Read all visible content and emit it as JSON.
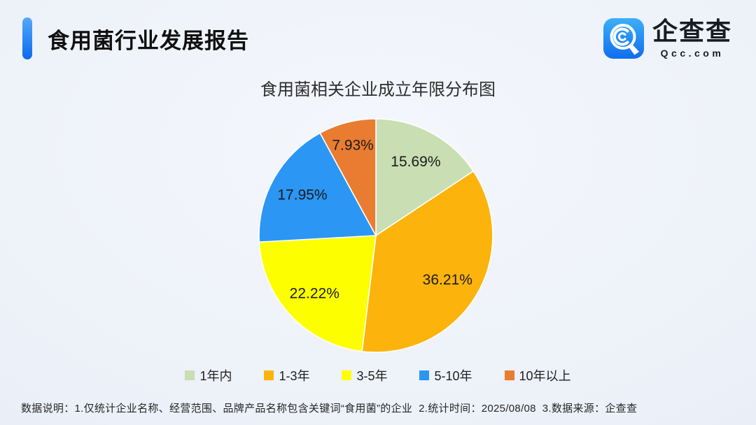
{
  "header": {
    "title": "食用菌行业发展报告",
    "accent_color_top": "#55a9f8",
    "accent_color_bottom": "#0b69ee"
  },
  "logo": {
    "name": "企查查",
    "domain": "Qcc.com",
    "brand_blue_top": "#3db0f7",
    "brand_blue_bottom": "#0f6dee"
  },
  "chart_data": {
    "type": "pie",
    "title": "食用菌相关企业成立年限分布图",
    "categories": [
      "1年内",
      "1-3年",
      "3-5年",
      "5-10年",
      "10年以上"
    ],
    "values": [
      15.69,
      36.21,
      22.22,
      17.95,
      7.93
    ],
    "labels": [
      "15.69%",
      "36.21%",
      "22.22%",
      "17.95%",
      "7.93%"
    ],
    "colors": [
      "#c9deb2",
      "#fcb30b",
      "#fdff00",
      "#2b96f4",
      "#e97c30"
    ],
    "unit": "%",
    "start_angle": "12-oclock",
    "direction": "clockwise",
    "legend_position": "bottom",
    "slice_border_color": "#ffffff"
  },
  "footer": {
    "note": "数据说明：1.仅统计企业名称、经营范围、品牌产品名称包含关键词“食用菌”的企业  2.统计时间：2025/08/08  3.数据来源：企查查"
  }
}
